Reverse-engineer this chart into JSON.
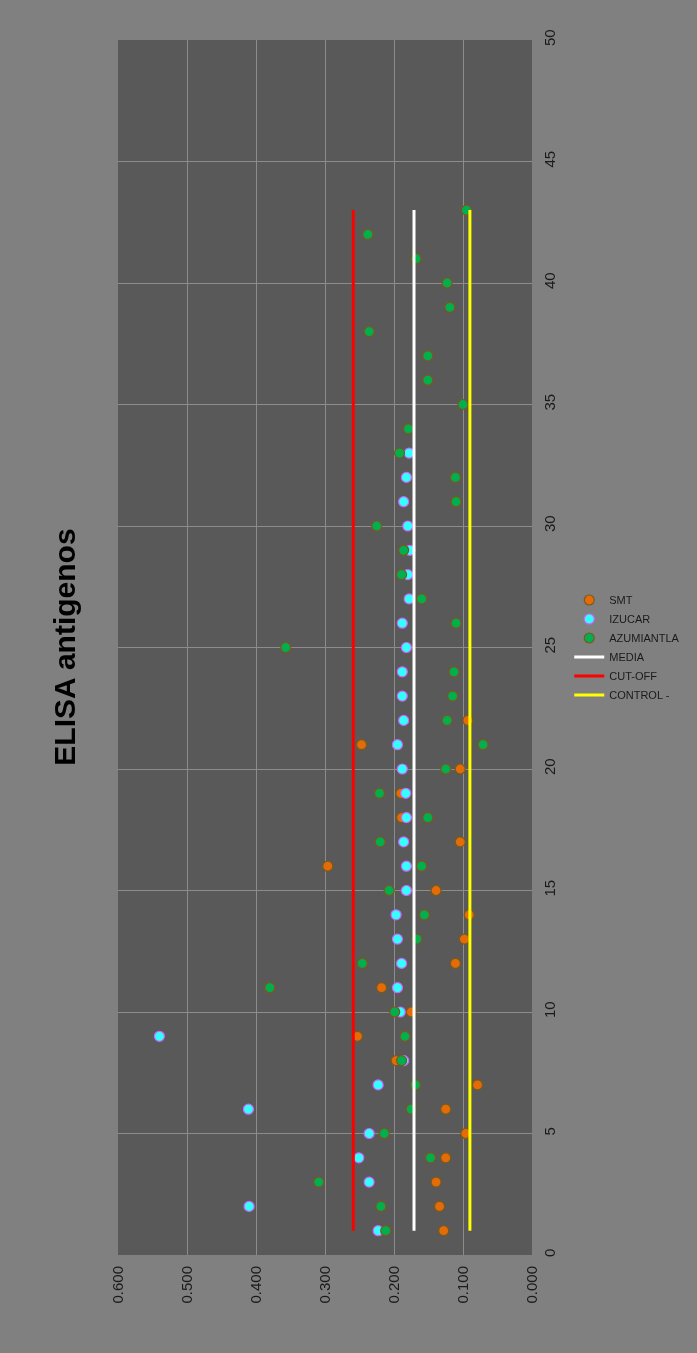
{
  "chart_data": {
    "type": "scatter",
    "title": "ELISA antigenos",
    "xlim": [
      0.6,
      0
    ],
    "xticks": [
      {
        "value": 0.6,
        "label": "0.600"
      },
      {
        "value": 0.5,
        "label": "0.500"
      },
      {
        "value": 0.4,
        "label": "0.400"
      },
      {
        "value": 0.3,
        "label": "0.300"
      },
      {
        "value": 0.2,
        "label": "0.200"
      },
      {
        "value": 0.1,
        "label": "0.100"
      },
      {
        "value": 0,
        "label": "0.000"
      }
    ],
    "ylim": [
      0,
      50
    ],
    "yticks": [
      0,
      5,
      10,
      15,
      20,
      25,
      30,
      35,
      40,
      45,
      50
    ],
    "grid": true,
    "legend": "right",
    "marker": "circle",
    "series": [
      {
        "name": "SMT",
        "color": "#e36c09",
        "x": [
          0.128,
          0.134,
          0.139,
          0.125,
          0.096,
          0.125,
          0.079,
          0.197,
          0.253,
          0.175,
          0.218,
          0.111,
          0.098,
          0.091,
          0.139,
          0.296,
          0.104,
          0.189,
          0.19,
          0.104,
          0.247,
          0.093
        ],
        "values": [
          1,
          2,
          3,
          4,
          5,
          6,
          7,
          8,
          9,
          10,
          11,
          12,
          13,
          14,
          15,
          16,
          17,
          18,
          19,
          20,
          21,
          22
        ]
      },
      {
        "name": "IZUCAR",
        "color": "#33ffff",
        "x": [
          0.223,
          0.41,
          0.236,
          0.251,
          0.236,
          0.411,
          0.223,
          0.186,
          0.54,
          0.191,
          0.195,
          0.189,
          0.195,
          0.197,
          0.182,
          0.182,
          0.186,
          0.182,
          0.183,
          0.188,
          0.195,
          0.186,
          0.188,
          0.188,
          0.182,
          0.188,
          0.178,
          0.18,
          0.177,
          0.18,
          0.186,
          0.182,
          0.178
        ],
        "values": [
          1,
          2,
          3,
          4,
          5,
          6,
          7,
          8,
          9,
          10,
          11,
          12,
          13,
          14,
          15,
          16,
          17,
          18,
          19,
          20,
          21,
          22,
          23,
          24,
          25,
          26,
          27,
          28,
          29,
          30,
          31,
          32,
          33
        ]
      },
      {
        "name": "AZUMIANTLA",
        "color": "#00b050",
        "x": [
          0.212,
          0.219,
          0.309,
          0.147,
          0.214,
          0.175,
          0.169,
          0.189,
          0.184,
          0.199,
          0.38,
          0.246,
          0.167,
          0.156,
          0.207,
          0.16,
          0.22,
          0.151,
          0.221,
          0.125,
          0.071,
          0.123,
          0.115,
          0.113,
          0.357,
          0.11,
          0.16,
          0.189,
          0.186,
          0.225,
          0.11,
          0.111,
          0.192,
          0.179,
          0.1,
          0.151,
          0.151,
          0.236,
          0.119,
          0.123,
          0.168,
          0.238,
          0.095
        ],
        "values": [
          1,
          2,
          3,
          4,
          5,
          6,
          7,
          8,
          9,
          10,
          11,
          12,
          13,
          14,
          15,
          16,
          17,
          18,
          19,
          20,
          21,
          22,
          23,
          24,
          25,
          26,
          27,
          28,
          29,
          30,
          31,
          32,
          33,
          34,
          35,
          36,
          37,
          38,
          39,
          40,
          41,
          42,
          43
        ]
      },
      {
        "name": "MEDIA",
        "type": "line",
        "marker": "none",
        "color": "#ffffff",
        "x": [
          0.171,
          0.171
        ],
        "values": [
          1,
          43
        ]
      },
      {
        "name": "CUT-OFF",
        "type": "line",
        "marker": "none",
        "color": "#ff0000",
        "x": [
          0.259,
          0.259
        ],
        "values": [
          1,
          43
        ]
      },
      {
        "name": "CONTROL -",
        "type": "line",
        "marker": "none",
        "color": "#ffff00",
        "x": [
          0.09,
          0.09
        ],
        "values": [
          1,
          43
        ]
      }
    ]
  }
}
